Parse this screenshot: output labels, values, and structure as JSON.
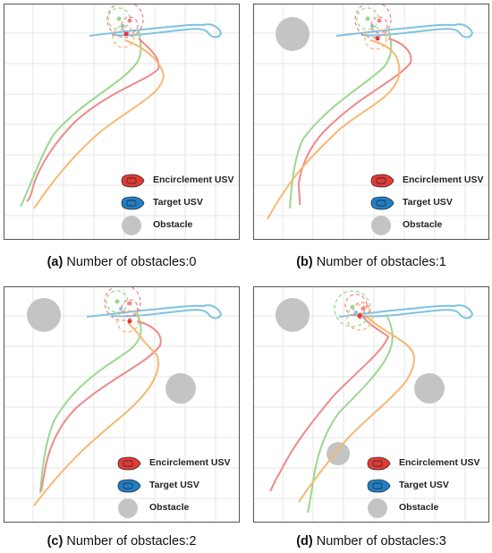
{
  "panels": [
    {
      "letter": "(a)",
      "caption": "Number of obstacles:0"
    },
    {
      "letter": "(b)",
      "caption": "Number of obstacles:1"
    },
    {
      "letter": "(c)",
      "caption": "Number of obstacles:2"
    },
    {
      "letter": "(d)",
      "caption": "Number of obstacles:3"
    }
  ],
  "legend": {
    "encirclement": "Encirclement USV",
    "target": "Target USV",
    "obstacle": "Obstacle"
  },
  "colors": {
    "red": "#ee8a8a",
    "green": "#9bd88f",
    "orange": "#f7b872",
    "blue": "#7ec3e0",
    "obstacle": "#c4c4c4",
    "grid": "#e4e4e4",
    "encirclement_icon": "#e53935",
    "target_icon": "#1e7fc8"
  }
}
